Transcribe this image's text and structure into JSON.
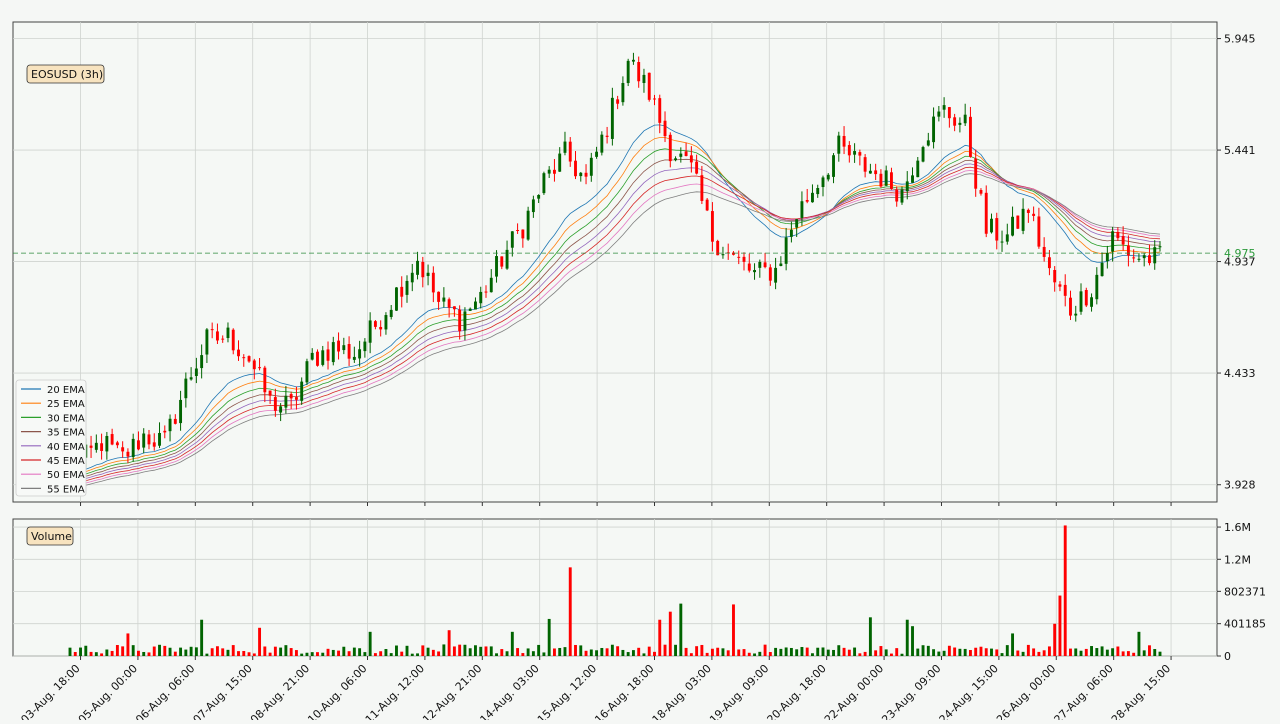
{
  "chart_data": [
    {
      "type": "candlestick",
      "title": "EOSUSD (3h)",
      "ylim": [
        3.85,
        6.02
      ],
      "yticks": [
        {
          "value": 3.928,
          "label": "3.928"
        },
        {
          "value": 4.433,
          "label": "4.433"
        },
        {
          "value": 4.937,
          "label": "4.937"
        },
        {
          "value": 5.441,
          "label": "5.441"
        },
        {
          "value": 5.945,
          "label": "5.945"
        }
      ],
      "last_price": {
        "value": 4.975,
        "label": "4.975"
      },
      "grid": true,
      "legend_position": "lower-left",
      "legend": [
        "20 EMA",
        "25 EMA",
        "30 EMA",
        "35 EMA",
        "40 EMA",
        "45 EMA",
        "50 EMA",
        "55 EMA"
      ],
      "ema_colors": [
        "#1f77b4",
        "#ff7f0e",
        "#2ca02c",
        "#8c564b",
        "#9467bd",
        "#d62728",
        "#e377c2",
        "#7f7f7f"
      ],
      "up_color": "#006400",
      "down_color": "#ff0000",
      "xticks": [
        "03-Aug. 18:00",
        "05-Aug. 00:00",
        "06-Aug. 06:00",
        "07-Aug. 15:00",
        "08-Aug. 21:00",
        "10-Aug. 06:00",
        "11-Aug. 12:00",
        "12-Aug. 21:00",
        "14-Aug. 03:00",
        "15-Aug. 12:00",
        "16-Aug. 18:00",
        "18-Aug. 03:00",
        "19-Aug. 09:00",
        "20-Aug. 18:00",
        "22-Aug. 00:00",
        "23-Aug. 09:00",
        "24-Aug. 15:00",
        "26-Aug. 00:00",
        "27-Aug. 06:00",
        "28-Aug. 15:00"
      ],
      "close_anchors": [
        [
          0,
          3.98
        ],
        [
          6,
          4.12
        ],
        [
          10,
          4.05
        ],
        [
          14,
          4.15
        ],
        [
          18,
          4.12
        ],
        [
          22,
          4.38
        ],
        [
          26,
          4.58
        ],
        [
          30,
          4.6
        ],
        [
          34,
          4.5
        ],
        [
          38,
          4.3
        ],
        [
          42,
          4.28
        ],
        [
          46,
          4.5
        ],
        [
          50,
          4.55
        ],
        [
          54,
          4.52
        ],
        [
          58,
          4.65
        ],
        [
          62,
          4.8
        ],
        [
          66,
          4.95
        ],
        [
          70,
          4.75
        ],
        [
          74,
          4.68
        ],
        [
          78,
          4.78
        ],
        [
          82,
          4.95
        ],
        [
          86,
          5.1
        ],
        [
          90,
          5.3
        ],
        [
          94,
          5.42
        ],
        [
          98,
          5.3
        ],
        [
          102,
          5.55
        ],
        [
          106,
          5.85
        ],
        [
          110,
          5.7
        ],
        [
          114,
          5.45
        ],
        [
          118,
          5.35
        ],
        [
          122,
          5.05
        ],
        [
          126,
          4.95
        ],
        [
          130,
          4.88
        ],
        [
          134,
          4.9
        ],
        [
          138,
          5.15
        ],
        [
          142,
          5.3
        ],
        [
          146,
          5.45
        ],
        [
          150,
          5.38
        ],
        [
          154,
          5.32
        ],
        [
          158,
          5.25
        ],
        [
          162,
          5.5
        ],
        [
          166,
          5.62
        ],
        [
          170,
          5.55
        ],
        [
          174,
          5.08
        ],
        [
          178,
          5.05
        ],
        [
          182,
          5.18
        ],
        [
          186,
          4.88
        ],
        [
          190,
          4.72
        ],
        [
          194,
          4.82
        ],
        [
          198,
          5.05
        ],
        [
          202,
          4.96
        ],
        [
          206,
          4.95
        ]
      ]
    },
    {
      "type": "bar",
      "title": "Volume",
      "ylim": [
        0,
        1700000
      ],
      "yticks": [
        {
          "value": 0,
          "label": "0"
        },
        {
          "value": 401185,
          "label": "401185"
        },
        {
          "value": 802371,
          "label": "802371"
        },
        {
          "value": 1200000,
          "label": "1.2M"
        },
        {
          "value": 1600000,
          "label": "1.6M"
        }
      ],
      "baseline": 90000,
      "spikes": [
        [
          11,
          280000
        ],
        [
          25,
          450000
        ],
        [
          36,
          350000
        ],
        [
          57,
          300000
        ],
        [
          72,
          320000
        ],
        [
          84,
          300000
        ],
        [
          91,
          460000
        ],
        [
          95,
          1100000
        ],
        [
          112,
          450000
        ],
        [
          114,
          550000
        ],
        [
          116,
          650000
        ],
        [
          126,
          640000
        ],
        [
          152,
          480000
        ],
        [
          159,
          450000
        ],
        [
          160,
          370000
        ],
        [
          179,
          280000
        ],
        [
          187,
          400000
        ],
        [
          188,
          750000
        ],
        [
          189,
          1620000
        ],
        [
          203,
          300000
        ]
      ]
    }
  ]
}
